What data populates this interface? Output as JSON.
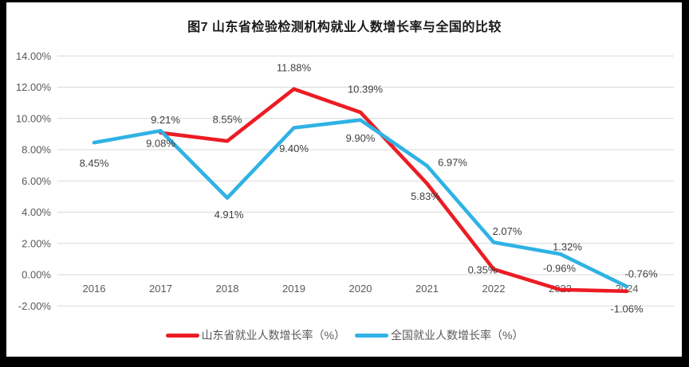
{
  "chart_data": {
    "type": "line",
    "title": "图7  山东省检验检测机构就业人数增长率与全国的比较",
    "categories": [
      "2016",
      "2017",
      "2018",
      "2019",
      "2020",
      "2021",
      "2022",
      "2023",
      "2024"
    ],
    "y_axis": {
      "tick_labels": [
        "14.00%",
        "12.00%",
        "10.00%",
        "8.00%",
        "6.00%",
        "4.00%",
        "2.00%",
        "0.00%",
        "-2.00%"
      ],
      "min": -2,
      "max": 14,
      "step": 2
    },
    "series": [
      {
        "name": "山东省就业人数增长率（%）",
        "slug": "shandong",
        "color": "#ec1c24",
        "values": [
          null,
          9.08,
          8.55,
          11.88,
          10.39,
          5.83,
          0.35,
          -0.96,
          -1.06
        ],
        "labels": [
          "",
          "9.08%",
          "8.55%",
          "11.88%",
          "10.39%",
          "5.83%",
          "0.35%",
          "-0.96%",
          "-1.06%"
        ],
        "label_offsets": [
          [
            0,
            0
          ],
          [
            0,
            13
          ],
          [
            0,
            -27
          ],
          [
            0,
            -27
          ],
          [
            6,
            -29
          ],
          [
            -2,
            16
          ],
          [
            -14,
            1
          ],
          [
            -1,
            -27
          ],
          [
            0,
            22
          ]
        ]
      },
      {
        "name": "全国就业人数增长率（%）",
        "slug": "national",
        "color": "#2fb2e4",
        "values": [
          8.45,
          9.21,
          4.91,
          9.4,
          9.9,
          6.97,
          2.07,
          1.32,
          -0.76
        ],
        "labels": [
          "8.45%",
          "9.21%",
          "4.91%",
          "9.40%",
          "9.90%",
          "6.97%",
          "2.07%",
          "1.32%",
          "-0.76%"
        ],
        "label_offsets": [
          [
            0,
            26
          ],
          [
            6,
            -14
          ],
          [
            2,
            21
          ],
          [
            0,
            26
          ],
          [
            0,
            23
          ],
          [
            32,
            -4
          ],
          [
            17,
            -14
          ],
          [
            9,
            -9
          ],
          [
            18,
            -16
          ]
        ]
      }
    ],
    "legend_position": "bottom",
    "grid": "horizontal",
    "colors": {
      "grid": "#d9d9d9",
      "axis_text": "#595959",
      "data_label": "#404040",
      "background": "#ffffff",
      "frame": "#000000"
    }
  }
}
